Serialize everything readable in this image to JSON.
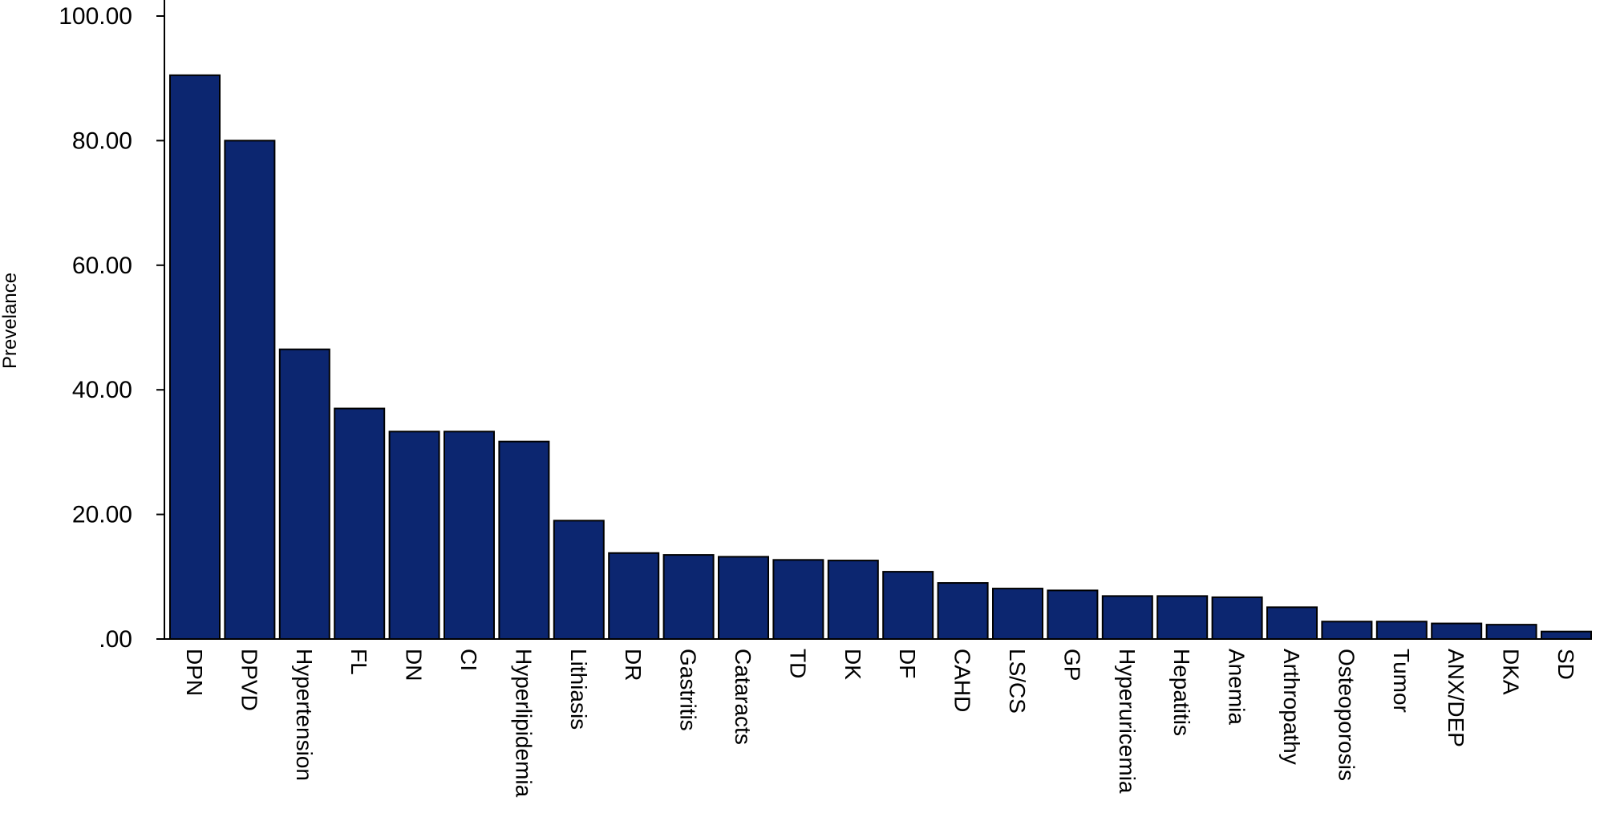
{
  "chart_data": {
    "type": "bar",
    "title": "",
    "xlabel": "",
    "ylabel": "Prevelance",
    "ylim": [
      0,
      100
    ],
    "yticks": [
      0,
      20,
      40,
      60,
      80,
      100
    ],
    "ytick_labels": [
      ".00",
      "20.00",
      "40.00",
      "60.00",
      "80.00",
      "100.00"
    ],
    "grid": false,
    "legend": "none",
    "bar_color": "#0c2670",
    "categories": [
      "DPN",
      "DPVD",
      "Hypertension",
      "FL",
      "DN",
      "CI",
      "Hyperlipidemia",
      "Lithiasis",
      "DR",
      "Gastritis",
      "Cataracts",
      "TD",
      "DK",
      "DF",
      "CAHD",
      "LS/CS",
      "GP",
      "Hyperuricemia",
      "Hepatitis",
      "Anemia",
      "Arthropathy",
      "Osteoporosis",
      "Tumor",
      "ANX/DEP",
      "DKA",
      "SD"
    ],
    "values": [
      90.5,
      80.0,
      46.5,
      37.0,
      33.3,
      33.3,
      31.7,
      19.0,
      13.8,
      13.5,
      13.2,
      12.7,
      12.6,
      10.8,
      9.0,
      8.1,
      7.8,
      6.9,
      6.9,
      6.7,
      5.1,
      2.8,
      2.8,
      2.5,
      2.3,
      1.2
    ]
  }
}
